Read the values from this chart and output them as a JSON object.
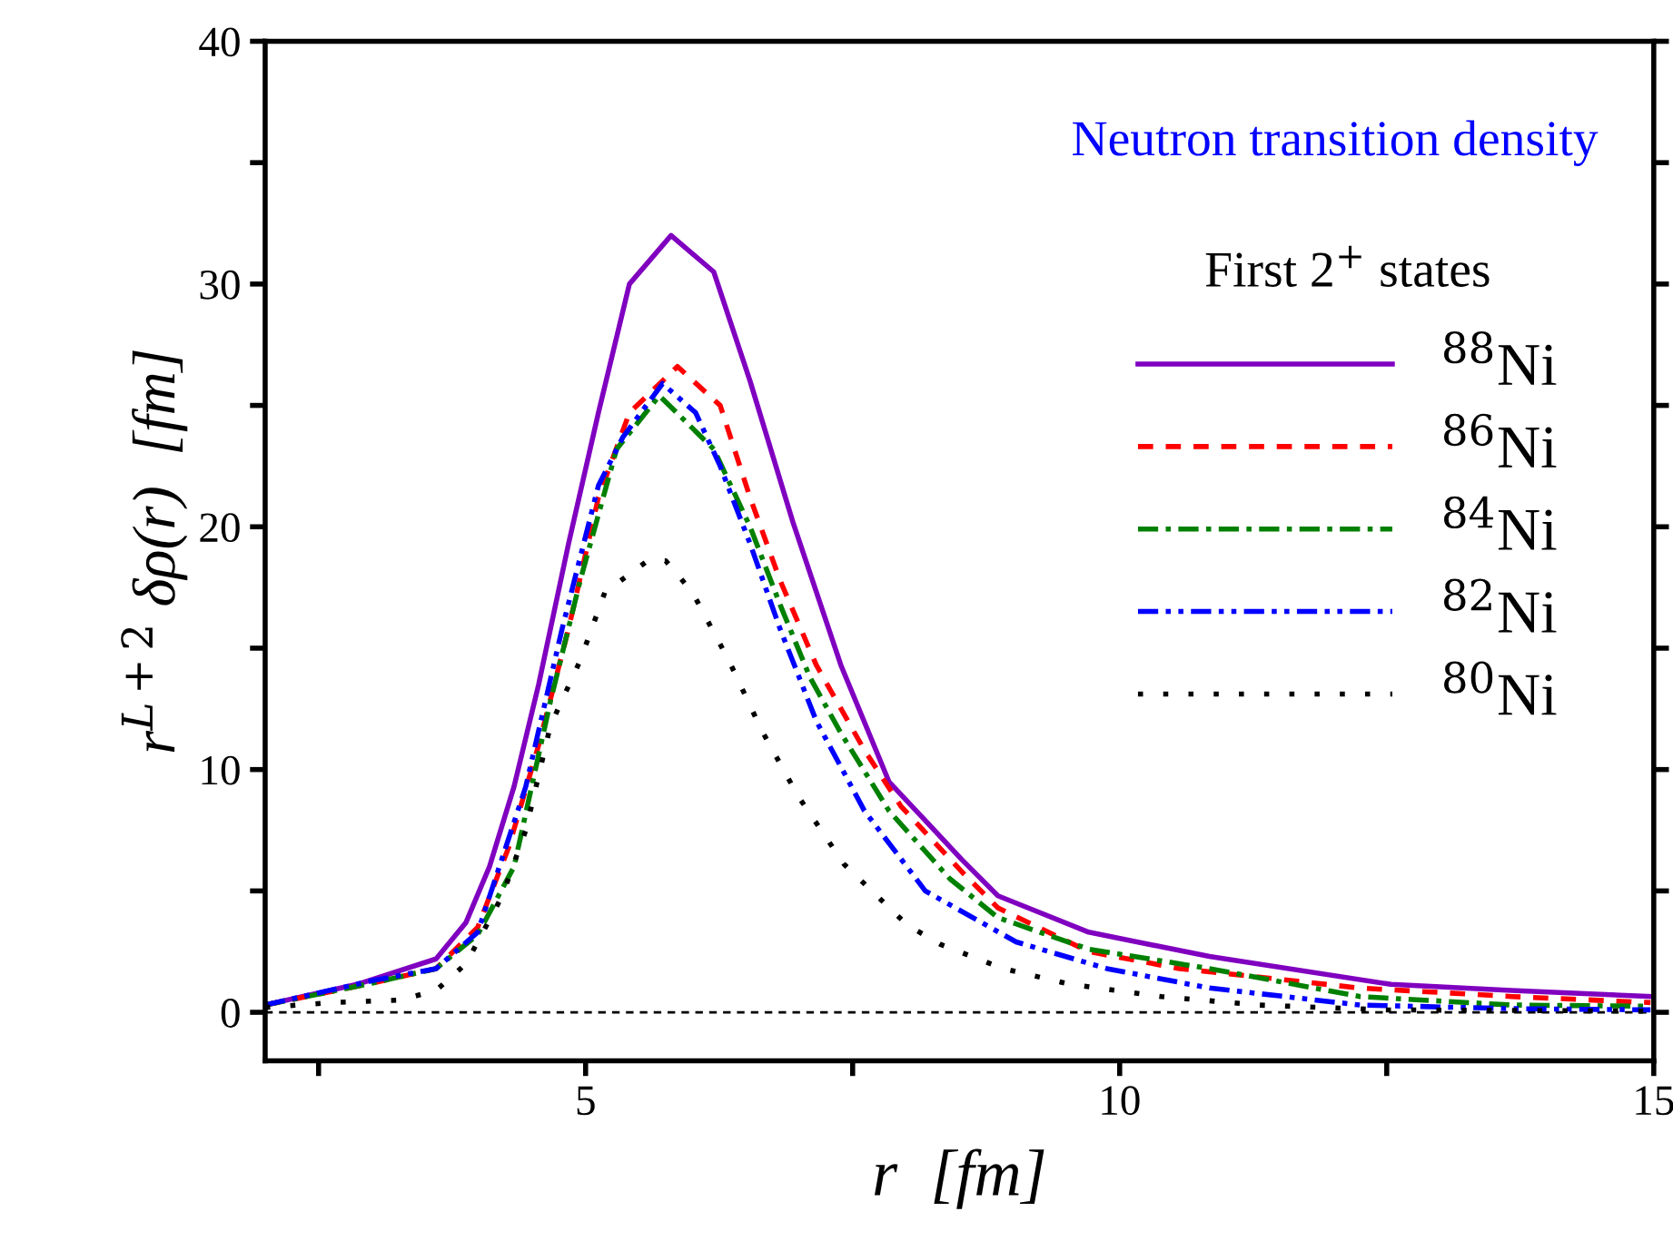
{
  "chart_data": {
    "type": "line",
    "title": "Neutron transition density",
    "xlabel": "r  [fm]",
    "ylabel": "r$^{L+2}$ δρ(r)  [fm]",
    "legend_title": "First 2$^{+}$ states",
    "legend": "right",
    "xlim": [
      2,
      15
    ],
    "xticks": [
      {
        "value": 2.5,
        "label": null
      },
      5,
      {
        "value": 7.5,
        "label": null
      },
      10,
      {
        "value": 12.5,
        "label": null
      },
      15
    ],
    "ylim": [
      -2,
      40
    ],
    "yticks": [
      0,
      {
        "value": 5,
        "label": null
      },
      10,
      {
        "value": 15,
        "label": null
      },
      20,
      {
        "value": 25,
        "label": null
      },
      30,
      {
        "value": 35,
        "label": null
      },
      40
    ],
    "grid": false,
    "ref_lines": [
      {
        "axis": "y",
        "value": 0,
        "color": "#000000",
        "line_style": "dashed"
      }
    ],
    "series": [
      {
        "name": "$^{88}$Ni",
        "color": "#8000c0",
        "line_style": "solid",
        "x": [
          2.0,
          2.86,
          3.6,
          3.88,
          4.1,
          4.33,
          4.56,
          4.84,
          5.12,
          5.41,
          5.8,
          6.2,
          6.54,
          6.94,
          7.39,
          7.84,
          8.52,
          8.86,
          9.71,
          10.84,
          12.54,
          13.67,
          14.97
        ],
        "values": [
          0.3,
          1.15,
          2.2,
          3.7,
          6.0,
          9.3,
          13.5,
          19.3,
          24.7,
          30.0,
          32.0,
          30.5,
          26.0,
          20.2,
          14.3,
          9.5,
          6.3,
          4.8,
          3.3,
          2.3,
          1.15,
          0.9,
          0.65
        ]
      },
      {
        "name": "$^{86}$Ni",
        "color": "#ff0000",
        "line_style": "dashed",
        "x": [
          2.0,
          3.0,
          3.6,
          3.99,
          4.28,
          4.56,
          4.84,
          5.12,
          5.41,
          5.86,
          6.26,
          6.54,
          6.82,
          7.16,
          7.61,
          7.95,
          8.52,
          8.86,
          9.71,
          10.56,
          12.25,
          13.67,
          14.97
        ],
        "values": [
          0.3,
          1.2,
          1.8,
          3.5,
          6.8,
          11.0,
          15.8,
          21.2,
          24.7,
          26.6,
          25.0,
          21.2,
          17.8,
          14.3,
          10.8,
          8.5,
          5.8,
          4.3,
          2.5,
          1.8,
          1.0,
          0.65,
          0.4
        ]
      },
      {
        "name": "$^{84}$Ni",
        "color": "#008000",
        "line_style": "dashdot",
        "x": [
          2.0,
          3.0,
          3.6,
          3.99,
          4.33,
          4.67,
          4.95,
          5.29,
          5.69,
          6.2,
          6.54,
          6.82,
          7.1,
          7.39,
          7.84,
          8.41,
          8.86,
          9.71,
          10.84,
          12.25,
          13.67,
          14.97
        ],
        "values": [
          0.3,
          1.2,
          1.8,
          3.2,
          6.0,
          12.8,
          17.8,
          23.2,
          25.4,
          23.2,
          20.0,
          16.8,
          13.8,
          11.5,
          8.3,
          5.5,
          3.9,
          2.6,
          1.8,
          0.65,
          0.3,
          0.25
        ]
      },
      {
        "name": "$^{82}$Ni",
        "color": "#0000ff",
        "line_style": "dashdotdot",
        "x": [
          2.0,
          3.0,
          3.6,
          3.99,
          4.44,
          4.78,
          5.12,
          5.35,
          5.72,
          6.03,
          6.26,
          6.54,
          6.82,
          7.16,
          7.61,
          8.18,
          9.03,
          9.88,
          10.84,
          12.25,
          13.67,
          14.97
        ],
        "values": [
          0.3,
          1.3,
          1.8,
          3.3,
          9.3,
          15.8,
          21.7,
          23.7,
          25.9,
          24.7,
          22.5,
          19.3,
          15.8,
          12.0,
          8.3,
          5.0,
          2.9,
          1.8,
          1.0,
          0.3,
          0.15,
          0.1
        ]
      },
      {
        "name": "$^{80}$Ni",
        "color": "#000000",
        "line_style": "dotted",
        "x": [
          2.0,
          2.63,
          3.26,
          3.6,
          3.88,
          4.22,
          4.44,
          4.67,
          4.95,
          5.18,
          5.58,
          5.75,
          6.0,
          6.34,
          6.65,
          6.99,
          7.42,
          8.01,
          8.32,
          8.91,
          9.54,
          10.39,
          11.29,
          12.5,
          14.97
        ],
        "values": [
          0.2,
          0.4,
          0.5,
          0.9,
          2.0,
          4.8,
          7.5,
          11.8,
          14.5,
          17.3,
          18.6,
          18.6,
          17.3,
          14.5,
          11.6,
          8.9,
          6.1,
          3.6,
          2.8,
          1.8,
          1.15,
          0.65,
          0.3,
          0.1,
          0.05
        ]
      }
    ]
  }
}
